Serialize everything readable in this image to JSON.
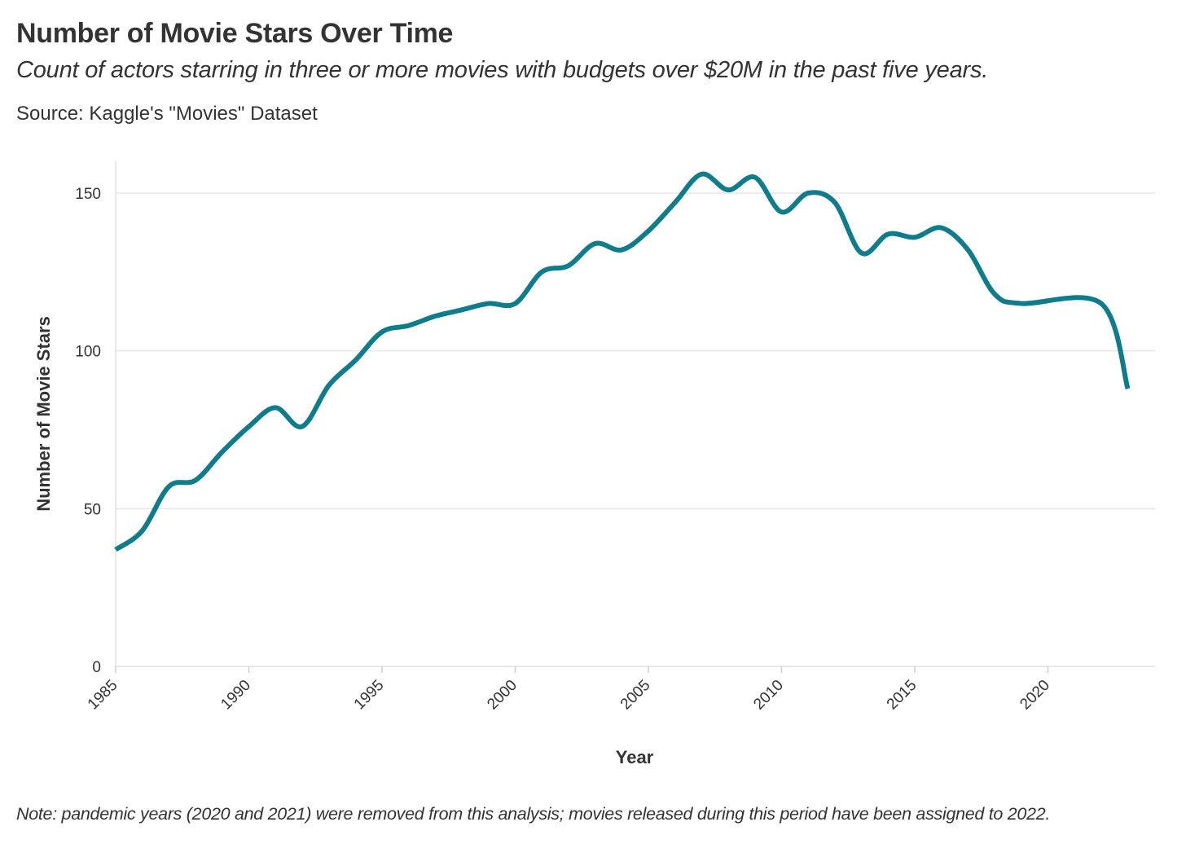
{
  "chart_data": {
    "type": "line",
    "title": "Number of Movie Stars Over Time",
    "subtitle": "Count of actors starring in three or more movies with budgets over $20M in the past five years.",
    "source": "Source: Kaggle's \"Movies\" Dataset",
    "note": "Note: pandemic years (2020 and 2021) were removed from this analysis; movies released during this period have been assigned to 2022.",
    "xlabel": "Year",
    "ylabel": "Number of Movie Stars",
    "xlim": [
      1985,
      2024
    ],
    "ylim": [
      0,
      160
    ],
    "x_ticks": [
      1985,
      1990,
      1995,
      2000,
      2005,
      2010,
      2015,
      2020
    ],
    "y_ticks": [
      0,
      50,
      100,
      150
    ],
    "grid": "horizontal",
    "line_color": "#0e7c8b",
    "series": [
      {
        "x": [
          1985,
          1986,
          1987,
          1988,
          1989,
          1990,
          1991,
          1992,
          1993,
          1994,
          1995,
          1996,
          1997,
          1998,
          1999,
          2000,
          2001,
          2002,
          2003,
          2004,
          2005,
          2006,
          2007,
          2008,
          2009,
          2010,
          2011,
          2012,
          2013,
          2014,
          2015,
          2016,
          2017,
          2018,
          2019,
          2022,
          2023
        ],
        "values": [
          37,
          43,
          57,
          59,
          68,
          76,
          82,
          76,
          89,
          97,
          106,
          108,
          111,
          113,
          115,
          115,
          125,
          127,
          134,
          132,
          138,
          147,
          156,
          151,
          155,
          144,
          150,
          147,
          131,
          137,
          136,
          139,
          132,
          118,
          115,
          115,
          88
        ]
      }
    ]
  }
}
